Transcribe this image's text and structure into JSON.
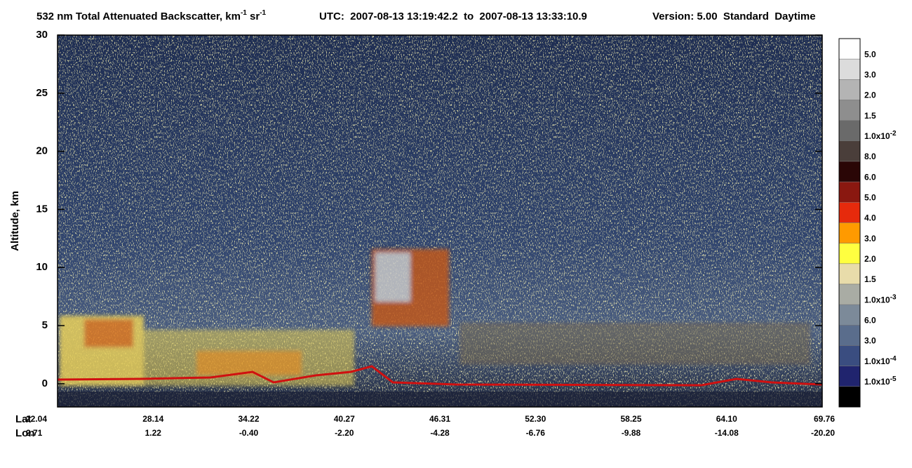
{
  "chart_data": {
    "type": "curtain",
    "title": {
      "main": "532 nm Total Attenuated Backscatter, km",
      "exp1": "-1",
      "unit2": " sr",
      "exp2": "-1"
    },
    "utc": "UTC:  2007-08-13 13:19:42.2  to  2007-08-13 13:33:10.9",
    "version": "Version: 5.00  Standard  Daytime",
    "y_label": "Altitude, km",
    "ylim": [
      -2,
      30
    ],
    "yticks": [
      0,
      5,
      10,
      15,
      20,
      25,
      30
    ],
    "row_labels": [
      "Lat",
      "Lon"
    ],
    "lat": [
      "22.04",
      "28.14",
      "34.22",
      "40.27",
      "46.31",
      "52.30",
      "58.25",
      "64.10",
      "69.76"
    ],
    "lon": [
      "2.71",
      "1.22",
      "-0.40",
      "-2.20",
      "-4.28",
      "-6.76",
      "-9.88",
      "-14.08",
      "-20.20"
    ],
    "colorbar": {
      "colors": [
        "#ffffff",
        "#dcdcdc",
        "#b4b4b4",
        "#8e8e8e",
        "#6a6a6a",
        "#4a3e3a",
        "#2a0606",
        "#8a1810",
        "#e62a0c",
        "#ff9a00",
        "#ffff40",
        "#e8dcaa",
        "#a9aca4",
        "#7c8a99",
        "#5a6d8c",
        "#3a4d80",
        "#20246e",
        "#000000"
      ],
      "labels": [
        {
          "text": "5.0"
        },
        {
          "text": "3.0"
        },
        {
          "text": "2.0"
        },
        {
          "text": "1.5"
        },
        {
          "text": "1.0x10",
          "exp": "-2"
        },
        {
          "text": "8.0"
        },
        {
          "text": "6.0"
        },
        {
          "text": "5.0"
        },
        {
          "text": "4.0"
        },
        {
          "text": "3.0"
        },
        {
          "text": "2.0"
        },
        {
          "text": "1.5"
        },
        {
          "text": "1.0x10",
          "exp": "-3"
        },
        {
          "text": "6.0"
        },
        {
          "text": "3.0"
        },
        {
          "text": "1.0x10",
          "exp": "-4"
        },
        {
          "text": "1.0x10",
          "exp": "-5"
        }
      ]
    }
  }
}
